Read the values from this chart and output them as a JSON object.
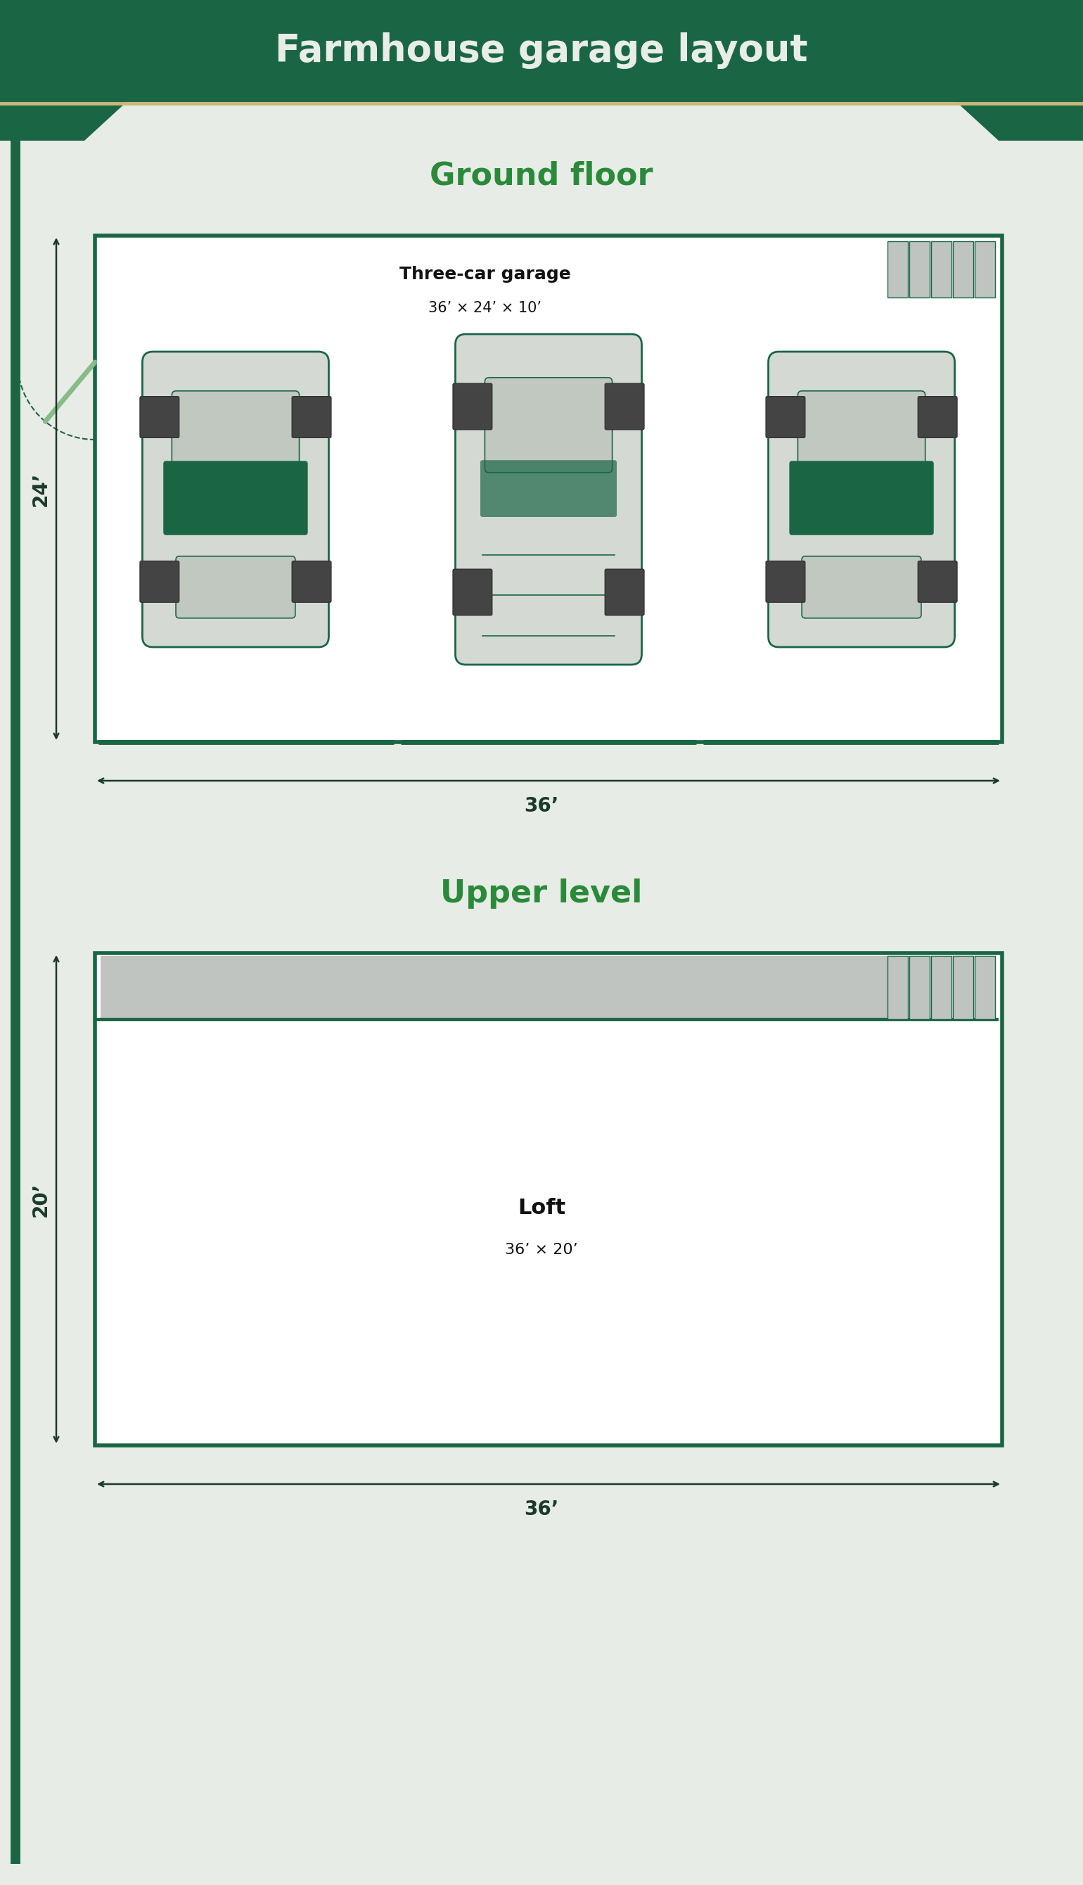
{
  "title": "Farmhouse garage layout",
  "title_bg_color": "#1a6644",
  "title_text_color": "#e8ede8",
  "bg_color": "#e8ece7",
  "wall_color": "#1a6644",
  "accent_line_color": "#c8b87a",
  "section_title_color": "#2a8a3a",
  "dim_text_color": "#1a3a2a",
  "car_body_color": "#d4d9d4",
  "car_dark_color": "#1a6644",
  "car_window_color": "#c0c8c0",
  "stair_color": "#c0c4c0",
  "loft_gray_color": "#c0c4c0",
  "ground_floor_label": "Ground floor",
  "ground_garage_label": "Three-car garage",
  "ground_garage_dims": "36’ × 24’ × 10’",
  "ground_width_label": "36’",
  "ground_height_label": "24’",
  "upper_level_label": "Upper level",
  "upper_loft_label": "Loft",
  "upper_loft_dims": "36’ × 20’",
  "upper_width_label": "36’",
  "upper_height_label": "20’",
  "fig_w": 15.4,
  "fig_h": 26.8
}
